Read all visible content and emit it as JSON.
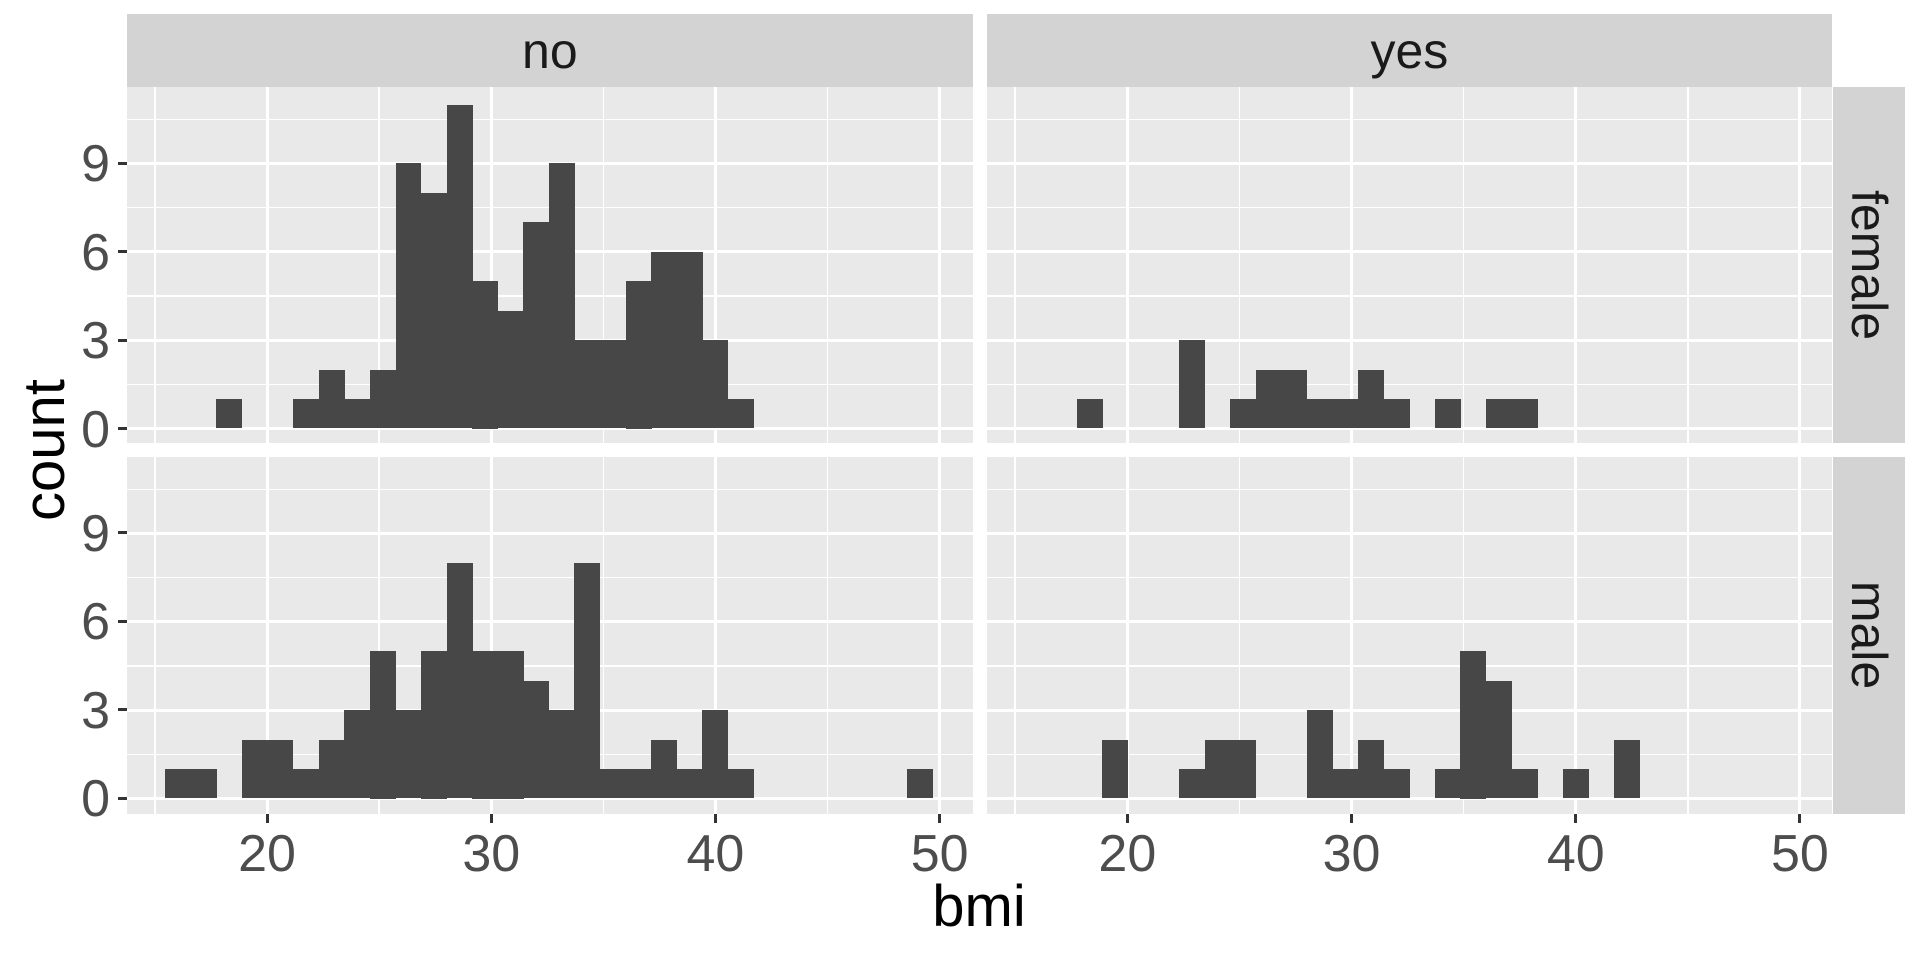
{
  "chart_data": {
    "type": "histogram",
    "title": "",
    "xlabel": "bmi",
    "ylabel": "count",
    "facet_cols": [
      "no",
      "yes"
    ],
    "facet_rows": [
      "female",
      "male"
    ],
    "x_axis": {
      "label": "bmi",
      "ticks": [
        20,
        30,
        40,
        50
      ],
      "minor_ticks": [
        15,
        25,
        35,
        45
      ],
      "range": [
        13.74,
        51.48
      ]
    },
    "y_axis": {
      "label": "count",
      "ticks": [
        0,
        3,
        6,
        9
      ],
      "minor_ticks": [
        1.5,
        4.5,
        7.5,
        10.5
      ],
      "range": [
        0,
        11.6
      ]
    },
    "bin_width": 1.14,
    "grid": true,
    "legend": "none",
    "colors": {
      "bar": "#474747",
      "panel_bg": "#e9e9e9",
      "strip_bg": "#d3d3d3",
      "gridline": "#ffffff",
      "tick_text": "#4d4d4d",
      "title_text": "#000000"
    },
    "panels": [
      {
        "col": "no",
        "row": "female",
        "bins": [
          {
            "x0": 17.74,
            "n": 1
          },
          {
            "x0": 21.16,
            "n": 1
          },
          {
            "x0": 22.3,
            "n": 2
          },
          {
            "x0": 23.45,
            "n": 1
          },
          {
            "x0": 24.59,
            "n": 2
          },
          {
            "x0": 25.73,
            "n": 9
          },
          {
            "x0": 26.87,
            "n": 8
          },
          {
            "x0": 28.01,
            "n": 11
          },
          {
            "x0": 29.15,
            "n": 5
          },
          {
            "x0": 30.29,
            "n": 4
          },
          {
            "x0": 31.43,
            "n": 7
          },
          {
            "x0": 32.57,
            "n": 9
          },
          {
            "x0": 33.71,
            "n": 3
          },
          {
            "x0": 34.85,
            "n": 3
          },
          {
            "x0": 36.0,
            "n": 5
          },
          {
            "x0": 37.14,
            "n": 6
          },
          {
            "x0": 38.28,
            "n": 6
          },
          {
            "x0": 39.42,
            "n": 3
          },
          {
            "x0": 40.56,
            "n": 1
          }
        ]
      },
      {
        "col": "yes",
        "row": "female",
        "bins": [
          {
            "x0": 17.74,
            "n": 1
          },
          {
            "x0": 22.3,
            "n": 3
          },
          {
            "x0": 24.59,
            "n": 1
          },
          {
            "x0": 25.73,
            "n": 2
          },
          {
            "x0": 26.87,
            "n": 2
          },
          {
            "x0": 28.01,
            "n": 1
          },
          {
            "x0": 29.15,
            "n": 1
          },
          {
            "x0": 30.29,
            "n": 2
          },
          {
            "x0": 31.43,
            "n": 1
          },
          {
            "x0": 33.71,
            "n": 1
          },
          {
            "x0": 36.0,
            "n": 1
          },
          {
            "x0": 37.14,
            "n": 1
          }
        ]
      },
      {
        "col": "no",
        "row": "male",
        "bins": [
          {
            "x0": 15.46,
            "n": 1
          },
          {
            "x0": 16.6,
            "n": 1
          },
          {
            "x0": 18.88,
            "n": 2
          },
          {
            "x0": 20.02,
            "n": 2
          },
          {
            "x0": 21.16,
            "n": 1
          },
          {
            "x0": 22.3,
            "n": 2
          },
          {
            "x0": 23.45,
            "n": 3
          },
          {
            "x0": 24.59,
            "n": 5
          },
          {
            "x0": 25.73,
            "n": 3
          },
          {
            "x0": 26.87,
            "n": 5
          },
          {
            "x0": 28.01,
            "n": 8
          },
          {
            "x0": 29.15,
            "n": 5
          },
          {
            "x0": 30.29,
            "n": 5
          },
          {
            "x0": 31.43,
            "n": 4
          },
          {
            "x0": 32.57,
            "n": 3
          },
          {
            "x0": 33.71,
            "n": 8
          },
          {
            "x0": 34.85,
            "n": 1
          },
          {
            "x0": 36.0,
            "n": 1
          },
          {
            "x0": 37.14,
            "n": 2
          },
          {
            "x0": 38.28,
            "n": 1
          },
          {
            "x0": 39.42,
            "n": 3
          },
          {
            "x0": 40.56,
            "n": 1
          },
          {
            "x0": 48.54,
            "n": 1
          }
        ]
      },
      {
        "col": "yes",
        "row": "male",
        "bins": [
          {
            "x0": 18.88,
            "n": 2
          },
          {
            "x0": 22.3,
            "n": 1
          },
          {
            "x0": 23.45,
            "n": 2
          },
          {
            "x0": 24.59,
            "n": 2
          },
          {
            "x0": 28.01,
            "n": 3
          },
          {
            "x0": 29.15,
            "n": 1
          },
          {
            "x0": 30.29,
            "n": 2
          },
          {
            "x0": 31.43,
            "n": 1
          },
          {
            "x0": 33.71,
            "n": 1
          },
          {
            "x0": 34.85,
            "n": 5
          },
          {
            "x0": 36.0,
            "n": 4
          },
          {
            "x0": 37.14,
            "n": 1
          },
          {
            "x0": 39.42,
            "n": 1
          },
          {
            "x0": 41.7,
            "n": 2
          }
        ]
      }
    ]
  }
}
